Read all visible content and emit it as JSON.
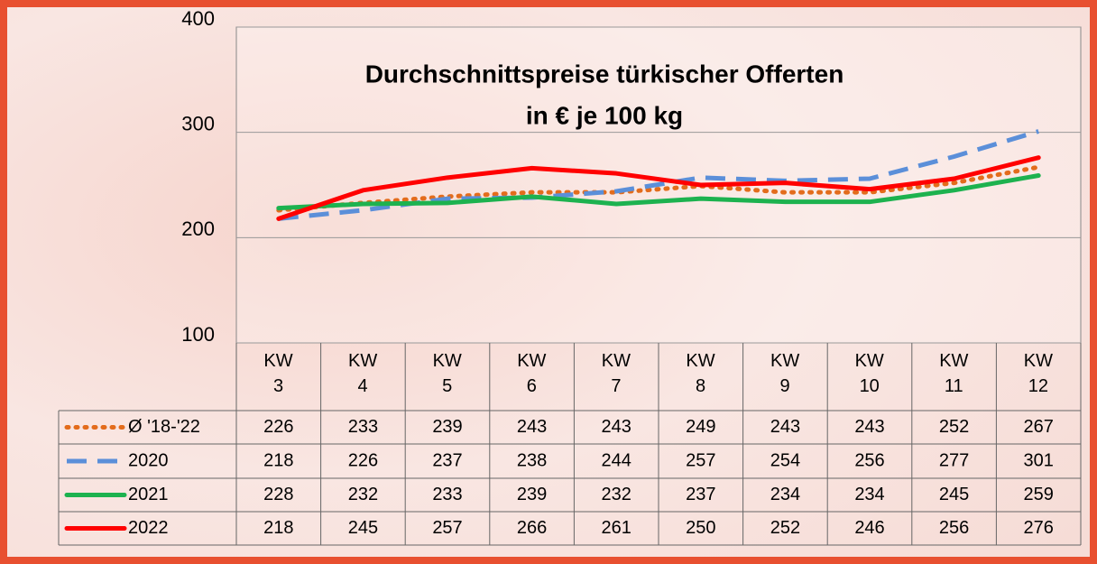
{
  "chart_data": {
    "type": "line",
    "title": [
      "Durchschnittspreise türkischer Offerten",
      "in € je 100 kg"
    ],
    "categories": [
      "KW 3",
      "KW 4",
      "KW 5",
      "KW 6",
      "KW 7",
      "KW 8",
      "KW 9",
      "KW 10",
      "KW 11",
      "KW 12"
    ],
    "series": [
      {
        "name": "Ø '18-'22",
        "color": "#e36c1c",
        "style": "dotted",
        "values": [
          226,
          233,
          239,
          243,
          243,
          249,
          243,
          243,
          252,
          267
        ]
      },
      {
        "name": "2020",
        "color": "#5b8fd9",
        "style": "dashed",
        "values": [
          218,
          226,
          237,
          238,
          244,
          257,
          254,
          256,
          277,
          301
        ]
      },
      {
        "name": "2021",
        "color": "#1db24f",
        "style": "solid",
        "values": [
          228,
          232,
          233,
          239,
          232,
          237,
          234,
          234,
          245,
          259
        ]
      },
      {
        "name": "2022",
        "color": "#ff0000",
        "style": "solid",
        "values": [
          218,
          245,
          257,
          266,
          261,
          250,
          252,
          246,
          256,
          276
        ]
      }
    ],
    "ylim": [
      100,
      400
    ],
    "yticks": [
      100,
      200,
      300,
      400
    ],
    "grid": true
  }
}
